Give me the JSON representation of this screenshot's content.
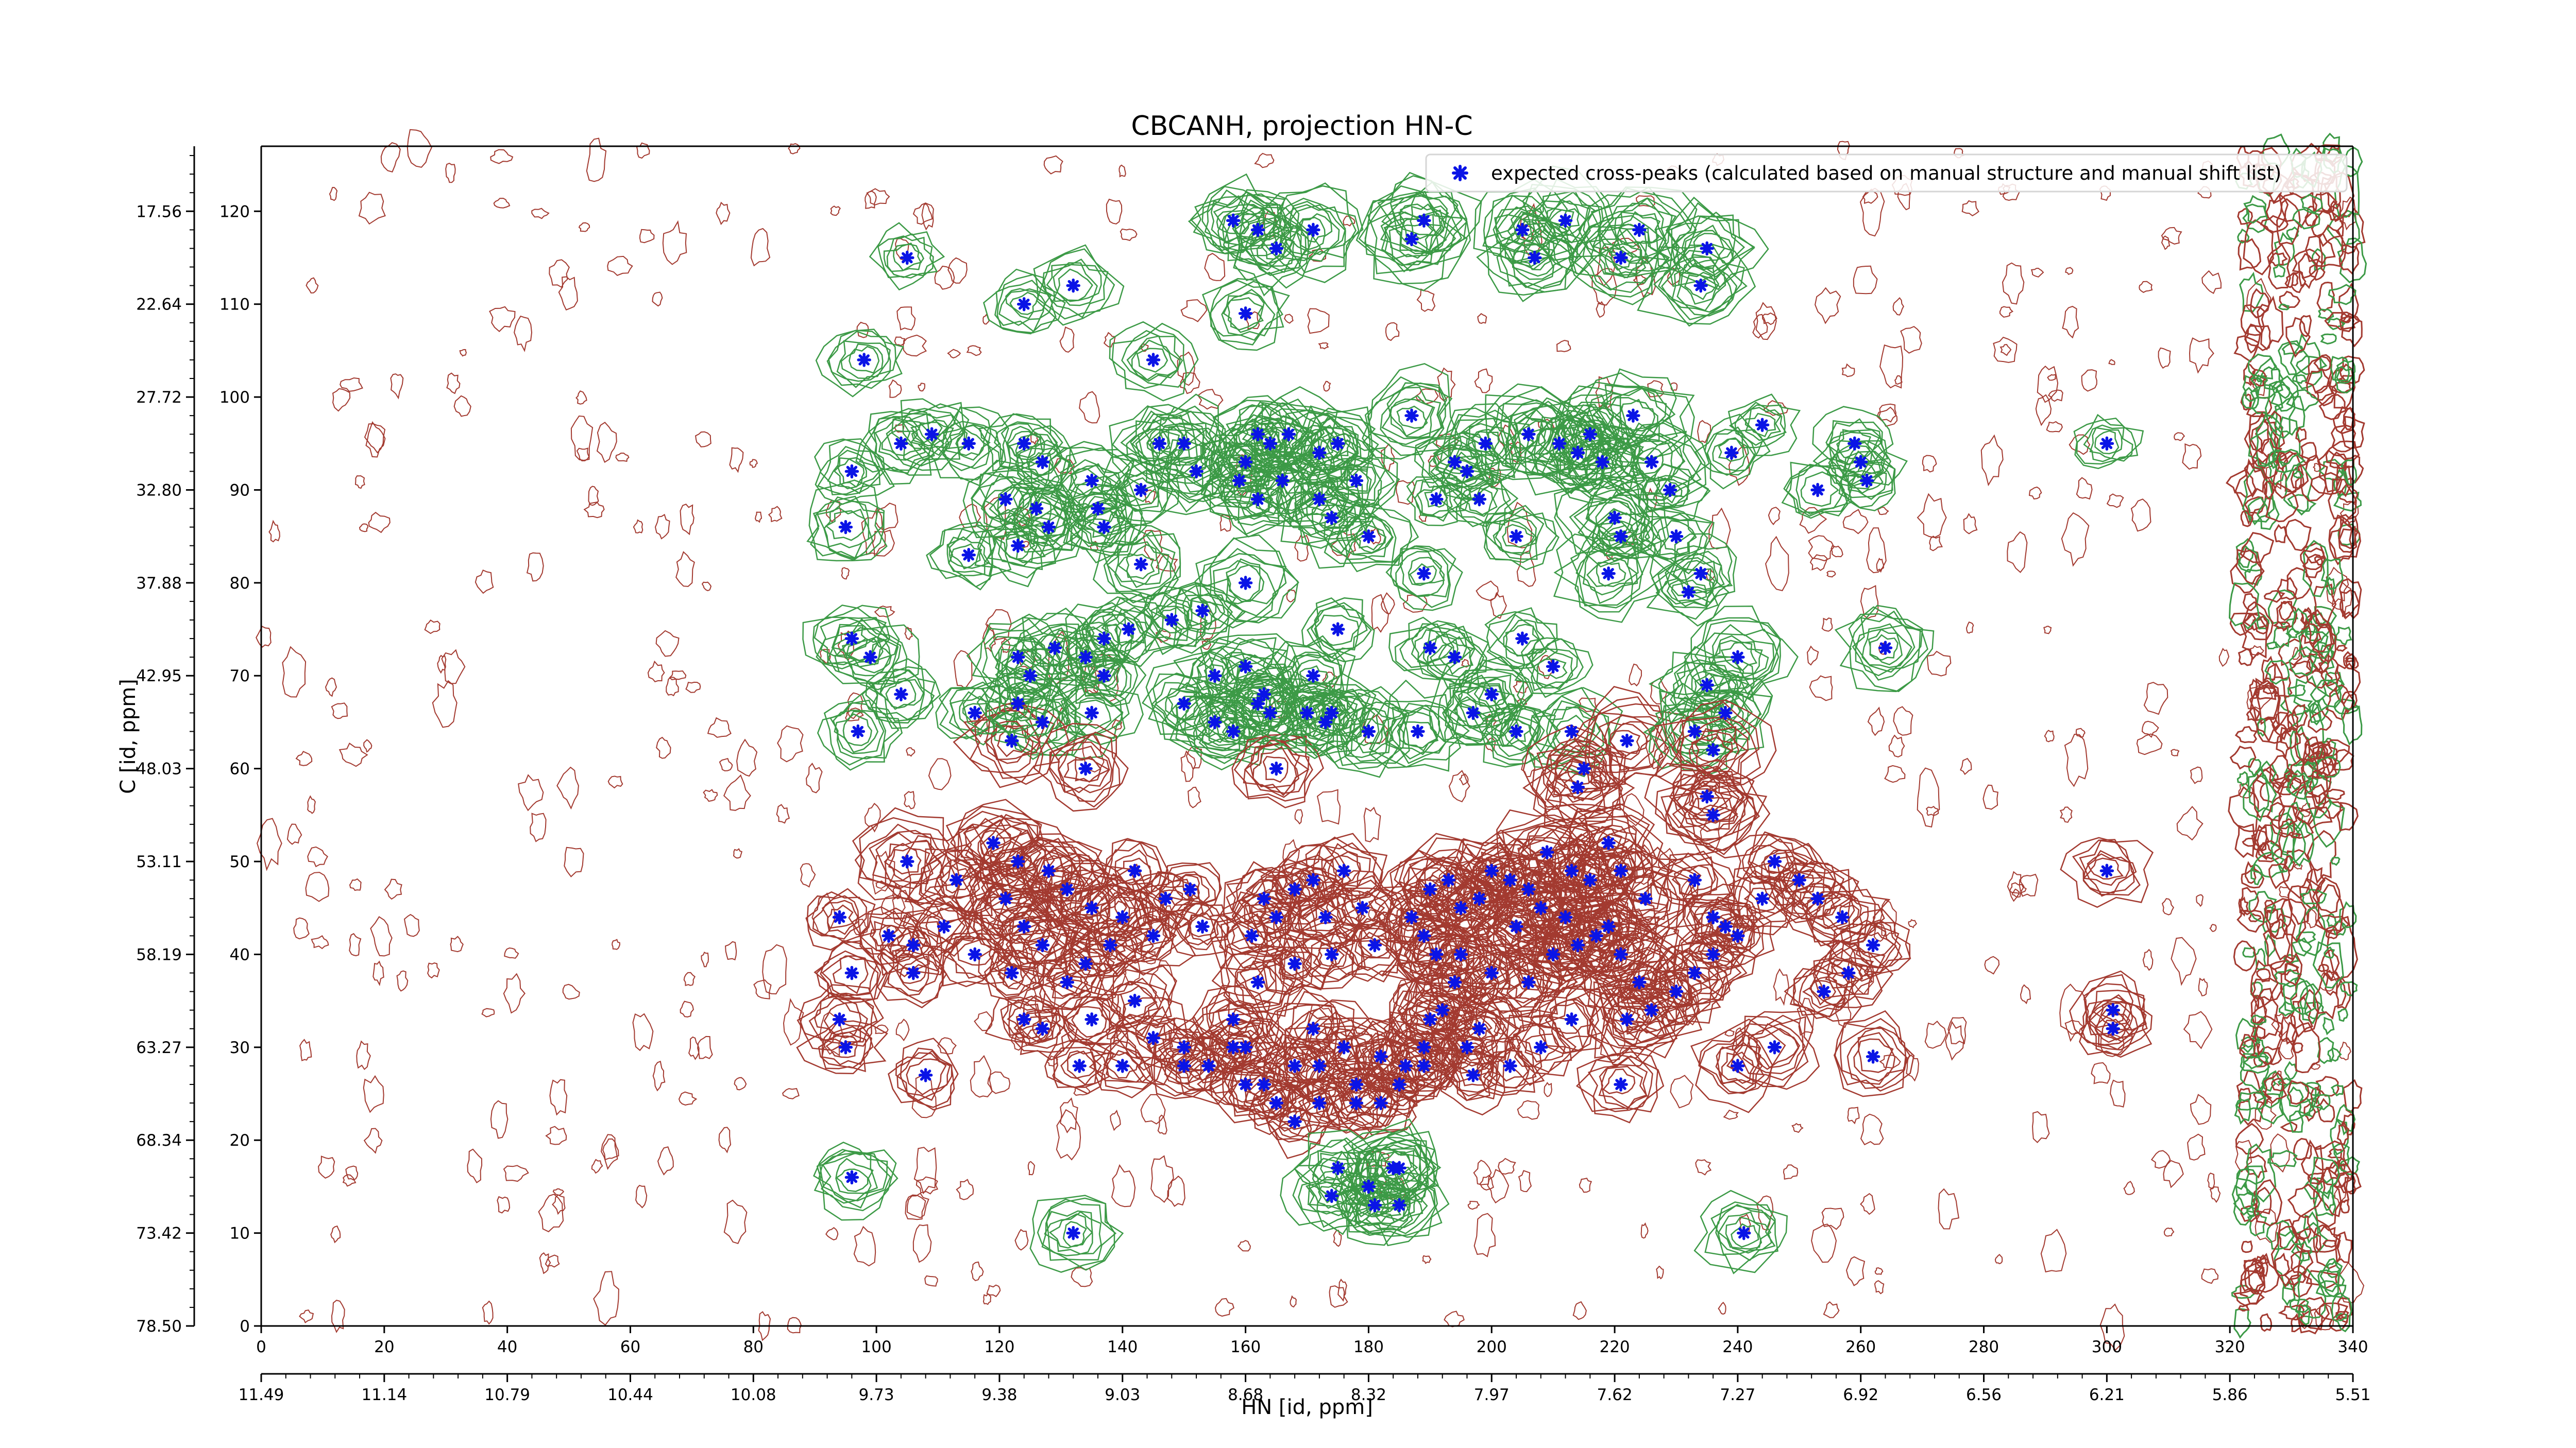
{
  "chart_data": {
    "type": "scatter",
    "title": "CBCANH, projection HN-C",
    "xlabel": "HN [id, ppm]",
    "ylabel": "C [id, ppm]",
    "xlim": [
      0,
      340
    ],
    "ylim": [
      0,
      127
    ],
    "x_ticks": [
      "0",
      "20",
      "40",
      "60",
      "80",
      "100",
      "120",
      "140",
      "160",
      "180",
      "200",
      "220",
      "240",
      "260",
      "280",
      "300",
      "320",
      "340"
    ],
    "x_ppm_ticks": [
      "11.49",
      "11.14",
      "10.79",
      "10.44",
      "10.08",
      "9.73",
      "9.38",
      "9.03",
      "8.68",
      "8.32",
      "7.97",
      "7.62",
      "7.27",
      "6.92",
      "6.56",
      "6.21",
      "5.86",
      "5.51"
    ],
    "y_ticks": [
      "0",
      "10",
      "20",
      "30",
      "40",
      "50",
      "60",
      "70",
      "80",
      "90",
      "100",
      "110",
      "120"
    ],
    "y_ppm_ticks": [
      "78.50",
      "73.42",
      "68.34",
      "63.27",
      "58.19",
      "53.11",
      "48.03",
      "42.95",
      "37.88",
      "32.80",
      "27.72",
      "22.64",
      "17.56"
    ],
    "legend_position": "top-right",
    "grid": false,
    "colors": {
      "peak_marker": "#0a14e6",
      "positive_contour": "#a33a30",
      "negative_contour": "#3c9a46"
    },
    "series": [
      {
        "name": "expected cross-peaks (calculated based on manual structure and manual shift list)",
        "points": [
          [
            105,
            115
          ],
          [
            124,
            110
          ],
          [
            132,
            112
          ],
          [
            160,
            109
          ],
          [
            145,
            104
          ],
          [
            98,
            104
          ],
          [
            96,
            92
          ],
          [
            95,
            86
          ],
          [
            104,
            95
          ],
          [
            109,
            96
          ],
          [
            115,
            95
          ],
          [
            124,
            95
          ],
          [
            127,
            93
          ],
          [
            121,
            89
          ],
          [
            126,
            88
          ],
          [
            128,
            86
          ],
          [
            123,
            84
          ],
          [
            115,
            83
          ],
          [
            135,
            91
          ],
          [
            136,
            88
          ],
          [
            137,
            86
          ],
          [
            143,
            90
          ],
          [
            146,
            95
          ],
          [
            150,
            95
          ],
          [
            152,
            92
          ],
          [
            143,
            82
          ],
          [
            160,
            93
          ],
          [
            162,
            96
          ],
          [
            164,
            95
          ],
          [
            167,
            96
          ],
          [
            172,
            94
          ],
          [
            175,
            95
          ],
          [
            159,
            91
          ],
          [
            162,
            89
          ],
          [
            166,
            91
          ],
          [
            172,
            89
          ],
          [
            178,
            91
          ],
          [
            174,
            87
          ],
          [
            180,
            85
          ],
          [
            160,
            80
          ],
          [
            158,
            119
          ],
          [
            162,
            118
          ],
          [
            165,
            116
          ],
          [
            171,
            118
          ],
          [
            187,
            117
          ],
          [
            189,
            119
          ],
          [
            205,
            118
          ],
          [
            207,
            115
          ],
          [
            212,
            119
          ],
          [
            221,
            115
          ],
          [
            224,
            118
          ],
          [
            235,
            116
          ],
          [
            234,
            112
          ],
          [
            187,
            98
          ],
          [
            199,
            95
          ],
          [
            206,
            96
          ],
          [
            211,
            95
          ],
          [
            214,
            94
          ],
          [
            218,
            93
          ],
          [
            216,
            96
          ],
          [
            223,
            98
          ],
          [
            226,
            93
          ],
          [
            220,
            87
          ],
          [
            219,
            81
          ],
          [
            221,
            85
          ],
          [
            229,
            90
          ],
          [
            230,
            85
          ],
          [
            234,
            81
          ],
          [
            232,
            79
          ],
          [
            239,
            94
          ],
          [
            244,
            97
          ],
          [
            253,
            90
          ],
          [
            259,
            95
          ],
          [
            260,
            93
          ],
          [
            261,
            91
          ],
          [
            300,
            95
          ],
          [
            175,
            75
          ],
          [
            190,
            73
          ],
          [
            194,
            72
          ],
          [
            205,
            74
          ],
          [
            210,
            71
          ],
          [
            191,
            89
          ],
          [
            194,
            93
          ],
          [
            196,
            92
          ],
          [
            198,
            89
          ],
          [
            204,
            85
          ],
          [
            189,
            81
          ],
          [
            96,
            74
          ],
          [
            99,
            72
          ],
          [
            97,
            64
          ],
          [
            104,
            68
          ],
          [
            116,
            66
          ],
          [
            123,
            72
          ],
          [
            125,
            70
          ],
          [
            129,
            73
          ],
          [
            137,
            74
          ],
          [
            134,
            72
          ],
          [
            137,
            70
          ],
          [
            135,
            66
          ],
          [
            141,
            75
          ],
          [
            148,
            76
          ],
          [
            153,
            77
          ],
          [
            155,
            70
          ],
          [
            160,
            71
          ],
          [
            163,
            68
          ],
          [
            155,
            65
          ],
          [
            150,
            67
          ],
          [
            171,
            70
          ],
          [
            173,
            65
          ],
          [
            127,
            65
          ],
          [
            122,
            63
          ],
          [
            123,
            67
          ],
          [
            134,
            60
          ],
          [
            158,
            64
          ],
          [
            162,
            67
          ],
          [
            164,
            66
          ],
          [
            165,
            60
          ],
          [
            170,
            66
          ],
          [
            174,
            66
          ],
          [
            180,
            64
          ],
          [
            188,
            64
          ],
          [
            197,
            66
          ],
          [
            200,
            68
          ],
          [
            204,
            64
          ],
          [
            213,
            64
          ],
          [
            215,
            60
          ],
          [
            214,
            58
          ],
          [
            222,
            63
          ],
          [
            235,
            69
          ],
          [
            238,
            66
          ],
          [
            240,
            72
          ],
          [
            233,
            64
          ],
          [
            236,
            62
          ],
          [
            264,
            73
          ],
          [
            235,
            57
          ],
          [
            236,
            55
          ],
          [
            105,
            50
          ],
          [
            113,
            48
          ],
          [
            119,
            52
          ],
          [
            123,
            50
          ],
          [
            128,
            49
          ],
          [
            121,
            46
          ],
          [
            124,
            43
          ],
          [
            127,
            41
          ],
          [
            131,
            47
          ],
          [
            135,
            45
          ],
          [
            140,
            44
          ],
          [
            142,
            49
          ],
          [
            147,
            46
          ],
          [
            151,
            47
          ],
          [
            153,
            43
          ],
          [
            145,
            42
          ],
          [
            138,
            41
          ],
          [
            134,
            39
          ],
          [
            131,
            37
          ],
          [
            122,
            38
          ],
          [
            116,
            40
          ],
          [
            111,
            43
          ],
          [
            106,
            41
          ],
          [
            102,
            42
          ],
          [
            94,
            44
          ],
          [
            96,
            38
          ],
          [
            94,
            33
          ],
          [
            95,
            30
          ],
          [
            106,
            38
          ],
          [
            124,
            33
          ],
          [
            127,
            32
          ],
          [
            135,
            33
          ],
          [
            142,
            35
          ],
          [
            145,
            31
          ],
          [
            150,
            28
          ],
          [
            158,
            30
          ],
          [
            161,
            42
          ],
          [
            163,
            46
          ],
          [
            165,
            44
          ],
          [
            168,
            47
          ],
          [
            171,
            48
          ],
          [
            173,
            44
          ],
          [
            176,
            49
          ],
          [
            179,
            45
          ],
          [
            181,
            41
          ],
          [
            174,
            40
          ],
          [
            168,
            39
          ],
          [
            162,
            37
          ],
          [
            158,
            33
          ],
          [
            160,
            30
          ],
          [
            163,
            26
          ],
          [
            168,
            28
          ],
          [
            171,
            32
          ],
          [
            172,
            28
          ],
          [
            176,
            30
          ],
          [
            178,
            26
          ],
          [
            182,
            29
          ],
          [
            186,
            28
          ],
          [
            189,
            30
          ],
          [
            190,
            33
          ],
          [
            192,
            34
          ],
          [
            196,
            30
          ],
          [
            198,
            32
          ],
          [
            194,
            37
          ],
          [
            191,
            40
          ],
          [
            189,
            42
          ],
          [
            187,
            44
          ],
          [
            190,
            47
          ],
          [
            193,
            48
          ],
          [
            195,
            45
          ],
          [
            198,
            46
          ],
          [
            200,
            49
          ],
          [
            203,
            48
          ],
          [
            206,
            47
          ],
          [
            209,
            51
          ],
          [
            213,
            49
          ],
          [
            216,
            48
          ],
          [
            219,
            52
          ],
          [
            221,
            49
          ],
          [
            225,
            46
          ],
          [
            219,
            43
          ],
          [
            214,
            41
          ],
          [
            210,
            40
          ],
          [
            206,
            37
          ],
          [
            200,
            38
          ],
          [
            195,
            40
          ],
          [
            204,
            43
          ],
          [
            208,
            45
          ],
          [
            212,
            44
          ],
          [
            217,
            42
          ],
          [
            221,
            40
          ],
          [
            224,
            37
          ],
          [
            226,
            34
          ],
          [
            222,
            33
          ],
          [
            213,
            33
          ],
          [
            208,
            30
          ],
          [
            203,
            28
          ],
          [
            197,
            27
          ],
          [
            189,
            28
          ],
          [
            185,
            26
          ],
          [
            182,
            24
          ],
          [
            178,
            24
          ],
          [
            172,
            24
          ],
          [
            168,
            22
          ],
          [
            165,
            24
          ],
          [
            160,
            26
          ],
          [
            154,
            28
          ],
          [
            150,
            30
          ],
          [
            140,
            28
          ],
          [
            133,
            28
          ],
          [
            108,
            27
          ],
          [
            233,
            48
          ],
          [
            236,
            44
          ],
          [
            238,
            43
          ],
          [
            240,
            42
          ],
          [
            236,
            40
          ],
          [
            233,
            38
          ],
          [
            230,
            36
          ],
          [
            244,
            46
          ],
          [
            246,
            50
          ],
          [
            250,
            48
          ],
          [
            253,
            46
          ],
          [
            257,
            44
          ],
          [
            262,
            41
          ],
          [
            258,
            38
          ],
          [
            254,
            36
          ],
          [
            246,
            30
          ],
          [
            240,
            28
          ],
          [
            221,
            26
          ],
          [
            300,
            49
          ],
          [
            301,
            34
          ],
          [
            301,
            32
          ],
          [
            262,
            29
          ],
          [
            175,
            17
          ],
          [
            174,
            14
          ],
          [
            180,
            15
          ],
          [
            181,
            13
          ],
          [
            185,
            17
          ],
          [
            185,
            13
          ],
          [
            96,
            16
          ],
          [
            132,
            10
          ],
          [
            241,
            10
          ],
          [
            184,
            17
          ]
        ]
      }
    ]
  }
}
